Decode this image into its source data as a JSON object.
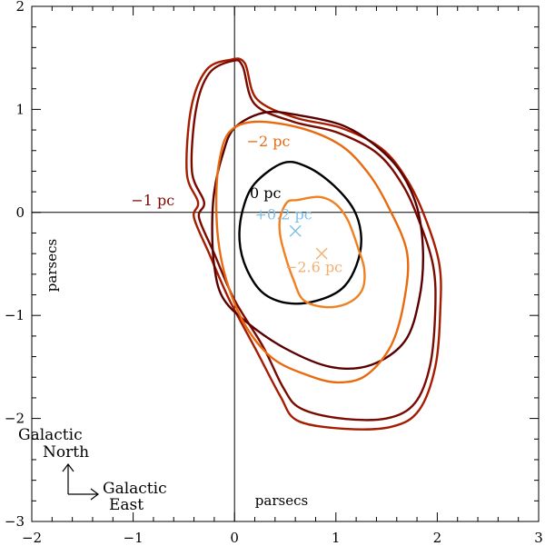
{
  "chart_data": {
    "type": "line",
    "title": "",
    "xlabel": "parsecs",
    "ylabel": "parsecs",
    "xlim": [
      -2,
      3
    ],
    "ylim": [
      -3,
      2
    ],
    "xticks": [
      "−2",
      "−1",
      "0",
      "1",
      "2",
      "3"
    ],
    "yticks": [
      "−3",
      "−2",
      "−1",
      "0",
      "1",
      "2"
    ],
    "xtick_values": [
      -2,
      -1,
      0,
      1,
      2,
      3
    ],
    "ytick_values": [
      -3,
      -2,
      -1,
      0,
      1,
      2
    ],
    "grid": false,
    "reference_lines": {
      "x": 0,
      "y": 0
    },
    "colors": {
      "outer_a": "#a51c00",
      "outer_b": "#7a0a00",
      "minus1": "#5a0000",
      "minus2": "#e86a10",
      "zero": "#000000",
      "inner": "#f08020",
      "plus02_label": "#7ec0e8",
      "minus26_label": "#f0b070"
    },
    "series": [
      {
        "name": "outer-a",
        "color": "#a51c00",
        "points": [
          [
            -0.05,
            1.48
          ],
          [
            0.1,
            1.45
          ],
          [
            0.22,
            1.1
          ],
          [
            0.6,
            0.92
          ],
          [
            1.05,
            0.82
          ],
          [
            1.45,
            0.62
          ],
          [
            1.7,
            0.32
          ],
          [
            1.88,
            -0.05
          ],
          [
            2.02,
            -0.5
          ],
          [
            2.03,
            -0.95
          ],
          [
            1.98,
            -1.5
          ],
          [
            1.82,
            -1.92
          ],
          [
            1.55,
            -2.08
          ],
          [
            1.08,
            -2.1
          ],
          [
            0.62,
            -2.02
          ],
          [
            0.45,
            -1.78
          ],
          [
            0.22,
            -1.35
          ],
          [
            -0.05,
            -0.85
          ],
          [
            -0.25,
            -0.4
          ],
          [
            -0.4,
            -0.05
          ],
          [
            -0.36,
            0.1
          ],
          [
            -0.47,
            0.38
          ],
          [
            -0.43,
            1.0
          ],
          [
            -0.28,
            1.38
          ],
          [
            -0.05,
            1.48
          ]
        ]
      },
      {
        "name": "outer-b",
        "color": "#7a0a00",
        "points": [
          [
            -0.02,
            1.47
          ],
          [
            0.08,
            1.42
          ],
          [
            0.2,
            1.05
          ],
          [
            0.58,
            0.88
          ],
          [
            1.0,
            0.78
          ],
          [
            1.4,
            0.58
          ],
          [
            1.65,
            0.28
          ],
          [
            1.82,
            -0.08
          ],
          [
            1.96,
            -0.52
          ],
          [
            1.98,
            -0.95
          ],
          [
            1.93,
            -1.48
          ],
          [
            1.78,
            -1.85
          ],
          [
            1.5,
            -2.0
          ],
          [
            1.05,
            -2.0
          ],
          [
            0.65,
            -1.9
          ],
          [
            0.48,
            -1.7
          ],
          [
            0.28,
            -1.3
          ],
          [
            0.0,
            -0.85
          ],
          [
            -0.2,
            -0.4
          ],
          [
            -0.35,
            -0.05
          ],
          [
            -0.3,
            0.1
          ],
          [
            -0.42,
            0.4
          ],
          [
            -0.38,
            1.0
          ],
          [
            -0.25,
            1.35
          ],
          [
            -0.02,
            1.47
          ]
        ]
      },
      {
        "name": "minus1",
        "color": "#5a0000",
        "points": [
          [
            0.3,
            0.97
          ],
          [
            0.65,
            0.94
          ],
          [
            1.05,
            0.85
          ],
          [
            1.35,
            0.68
          ],
          [
            1.62,
            0.42
          ],
          [
            1.8,
            0.05
          ],
          [
            1.86,
            -0.4
          ],
          [
            1.82,
            -0.85
          ],
          [
            1.68,
            -1.25
          ],
          [
            1.35,
            -1.48
          ],
          [
            0.95,
            -1.5
          ],
          [
            0.5,
            -1.32
          ],
          [
            0.1,
            -1.05
          ],
          [
            -0.12,
            -0.82
          ],
          [
            -0.2,
            -0.52
          ],
          [
            -0.22,
            -0.15
          ],
          [
            -0.2,
            0.2
          ],
          [
            -0.12,
            0.55
          ],
          [
            0.0,
            0.82
          ],
          [
            0.3,
            0.97
          ]
        ]
      },
      {
        "name": "minus2",
        "color": "#e86a10",
        "points": [
          [
            0.2,
            0.88
          ],
          [
            0.65,
            0.82
          ],
          [
            1.05,
            0.65
          ],
          [
            1.32,
            0.38
          ],
          [
            1.52,
            0.05
          ],
          [
            1.7,
            -0.38
          ],
          [
            1.68,
            -0.82
          ],
          [
            1.55,
            -1.28
          ],
          [
            1.3,
            -1.58
          ],
          [
            1.02,
            -1.65
          ],
          [
            0.72,
            -1.58
          ],
          [
            0.38,
            -1.42
          ],
          [
            0.12,
            -1.12
          ],
          [
            -0.05,
            -0.75
          ],
          [
            -0.15,
            -0.35
          ],
          [
            -0.18,
            0.1
          ],
          [
            -0.15,
            0.5
          ],
          [
            -0.05,
            0.78
          ],
          [
            0.2,
            0.88
          ]
        ]
      },
      {
        "name": "zero",
        "color": "#000000",
        "points": [
          [
            0.48,
            0.48
          ],
          [
            0.72,
            0.44
          ],
          [
            0.98,
            0.26
          ],
          [
            1.18,
            0.02
          ],
          [
            1.25,
            -0.25
          ],
          [
            1.2,
            -0.52
          ],
          [
            1.06,
            -0.74
          ],
          [
            0.8,
            -0.86
          ],
          [
            0.52,
            -0.88
          ],
          [
            0.28,
            -0.78
          ],
          [
            0.12,
            -0.55
          ],
          [
            0.05,
            -0.28
          ],
          [
            0.08,
            0.02
          ],
          [
            0.2,
            0.28
          ],
          [
            0.48,
            0.48
          ]
        ]
      },
      {
        "name": "inner",
        "color": "#f08020",
        "points": [
          [
            0.62,
            0.12
          ],
          [
            0.84,
            0.15
          ],
          [
            1.0,
            0.08
          ],
          [
            1.12,
            -0.08
          ],
          [
            1.22,
            -0.35
          ],
          [
            1.28,
            -0.55
          ],
          [
            1.26,
            -0.75
          ],
          [
            1.12,
            -0.88
          ],
          [
            0.9,
            -0.92
          ],
          [
            0.68,
            -0.85
          ],
          [
            0.58,
            -0.65
          ],
          [
            0.5,
            -0.42
          ],
          [
            0.45,
            -0.22
          ],
          [
            0.45,
            -0.05
          ],
          [
            0.52,
            0.1
          ],
          [
            0.62,
            0.12
          ]
        ]
      }
    ],
    "markers": [
      {
        "x": 0.6,
        "y": -0.18,
        "color": "#7ec0e8"
      },
      {
        "x": 0.86,
        "y": -0.4,
        "color": "#f0b070"
      }
    ],
    "annotations": [
      {
        "text": "−1 pc",
        "x": -1.02,
        "y": 0.07,
        "color": "#7a0a00"
      },
      {
        "text": "−2 pc",
        "x": 0.12,
        "y": 0.64,
        "color": "#e86a10"
      },
      {
        "text": "0 pc",
        "x": 0.15,
        "y": 0.14,
        "color": "#000000"
      },
      {
        "text": "+0.2 pc",
        "x": 0.2,
        "y": -0.07,
        "color": "#7ec0e8"
      },
      {
        "text": "−2.6 pc",
        "x": 0.5,
        "y": -0.58,
        "color": "#f0b070"
      }
    ],
    "compass": {
      "north_label_line1": "Galactic",
      "north_label_line2": "North",
      "east_label_line1": "Galactic",
      "east_label_line2": "East"
    }
  }
}
